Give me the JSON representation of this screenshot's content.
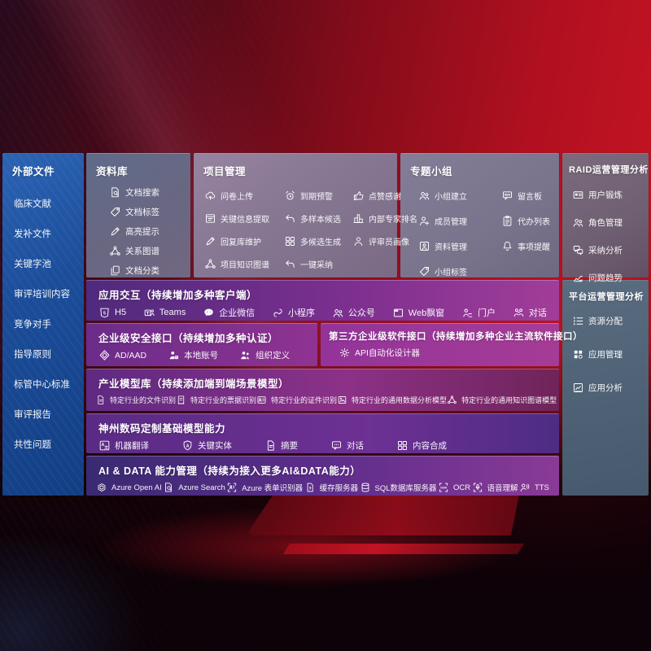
{
  "colors": {
    "background_red": "#b01020",
    "sidebar_blue": "#1b4d9a",
    "band_purple": "#7c2f8f",
    "band_magenta": "#a13d99",
    "panel_gray": "#79738c",
    "text": "#ffffff"
  },
  "sidebar": {
    "title": "外部文件",
    "items": [
      {
        "label": "临床文献"
      },
      {
        "label": "发补文件"
      },
      {
        "label": "关键字池"
      },
      {
        "label": "审评培训内容"
      },
      {
        "label": "竞争对手"
      },
      {
        "label": "指导原则"
      },
      {
        "label": "标管中心标准"
      },
      {
        "label": "审评报告"
      },
      {
        "label": "共性问题"
      }
    ]
  },
  "sections": {
    "ziliaoku": {
      "title": "资料库",
      "items": [
        {
          "icon": "doc-search",
          "label": "文档搜索"
        },
        {
          "icon": "tag",
          "label": "文档标签"
        },
        {
          "icon": "pen",
          "label": "高亮提示"
        },
        {
          "icon": "network",
          "label": "关系图谱"
        },
        {
          "icon": "docs",
          "label": "文档分类"
        }
      ]
    },
    "xiangmu": {
      "title": "项目管理",
      "items": [
        {
          "icon": "cloud-up",
          "label": "问卷上传"
        },
        {
          "icon": "alarm",
          "label": "到期预警"
        },
        {
          "icon": "thumb",
          "label": "点赞感谢"
        },
        {
          "icon": "window",
          "label": "关键信息提取"
        },
        {
          "icon": "reply",
          "label": "多样本候选"
        },
        {
          "icon": "rank",
          "label": "内部专家排名"
        },
        {
          "icon": "pen",
          "label": "回复库维护"
        },
        {
          "icon": "grid4",
          "label": "多候选生成"
        },
        {
          "icon": "person",
          "label": "评审员画像"
        },
        {
          "icon": "network",
          "label": "项目知识图谱"
        },
        {
          "icon": "reply",
          "label": "一键采纳"
        }
      ]
    },
    "zhuanti": {
      "title": "专题小组",
      "items": [
        {
          "icon": "group",
          "label": "小组建立"
        },
        {
          "icon": "bbs",
          "label": "留言板"
        },
        {
          "icon": "person-add",
          "label": "成员管理"
        },
        {
          "icon": "clipboard",
          "label": "代办列表"
        },
        {
          "icon": "album",
          "label": "资料管理"
        },
        {
          "icon": "bell",
          "label": "事项提醒"
        },
        {
          "icon": "tag",
          "label": "小组标签"
        }
      ]
    },
    "raid": {
      "title": "RAID运营管理分析",
      "items": [
        {
          "icon": "idcard",
          "label": "用户锻炼"
        },
        {
          "icon": "group",
          "label": "角色管理"
        },
        {
          "icon": "chat-qa",
          "label": "采纳分析"
        },
        {
          "icon": "trend",
          "label": "问题趋势"
        }
      ]
    },
    "pingtai": {
      "title": "平台运营管理分析",
      "items": [
        {
          "icon": "list",
          "label": "资源分配"
        },
        {
          "icon": "apps",
          "label": "应用管理"
        },
        {
          "icon": "chart-frame",
          "label": "应用分析"
        }
      ]
    },
    "app_interact": {
      "title": "应用交互（持续增加多种客户端）",
      "items": [
        {
          "icon": "h5",
          "label": "H5"
        },
        {
          "icon": "teams",
          "label": "Teams"
        },
        {
          "icon": "wechat",
          "label": "企业微信"
        },
        {
          "icon": "mini",
          "label": "小程序"
        },
        {
          "icon": "group",
          "label": "公众号"
        },
        {
          "icon": "webwin",
          "label": "Web飘窗"
        },
        {
          "icon": "portal",
          "label": "门户"
        },
        {
          "icon": "dialog",
          "label": "对话"
        }
      ]
    },
    "security": {
      "title": "企业级安全接口（持续增加多种认证）",
      "items": [
        {
          "icon": "shield-d",
          "label": "AD/AAD"
        },
        {
          "icon": "account",
          "label": "本地账号"
        },
        {
          "icon": "org",
          "label": "组织定义"
        }
      ]
    },
    "third_party": {
      "title": "第三方企业级软件接口（持续增加多种企业主流软件接口）",
      "items": [
        {
          "icon": "gear",
          "label": "API自动化设计器"
        }
      ]
    },
    "industry_models": {
      "title": "产业模型库（持续添加端到端场景模型）",
      "items": [
        {
          "icon": "doc",
          "label": "特定行业的文件识别"
        },
        {
          "icon": "receipt",
          "label": "特定行业的票据识别"
        },
        {
          "icon": "cert",
          "label": "特定行业的证件识别"
        },
        {
          "icon": "img",
          "label": "特定行业的通用数据分析模型"
        },
        {
          "icon": "network",
          "label": "特定行业的通用知识图谱模型"
        }
      ]
    },
    "base_models": {
      "title": "神州数码定制基础模型能力",
      "items": [
        {
          "icon": "translate",
          "label": "机器翻译"
        },
        {
          "icon": "entity",
          "label": "关键实体"
        },
        {
          "icon": "doc",
          "label": "摘要"
        },
        {
          "icon": "chatdots",
          "label": "对话"
        },
        {
          "icon": "grid4",
          "label": "内容合成"
        }
      ]
    },
    "ai_data": {
      "title": "AI & DATA 能力管理（持续为接入更多AI&DATA能力）",
      "items": [
        {
          "icon": "openai",
          "label": "Azure Open AI"
        },
        {
          "icon": "doc-search",
          "label": "Azure Search"
        },
        {
          "icon": "form",
          "label": "Azure 表单识别器"
        },
        {
          "icon": "cache",
          "label": "缓存服务器"
        },
        {
          "icon": "db",
          "label": "SQL数据库服务器"
        },
        {
          "icon": "ocr",
          "label": "OCR"
        },
        {
          "icon": "speech",
          "label": "语音理解"
        },
        {
          "icon": "tts",
          "label": "TTS"
        }
      ]
    }
  }
}
